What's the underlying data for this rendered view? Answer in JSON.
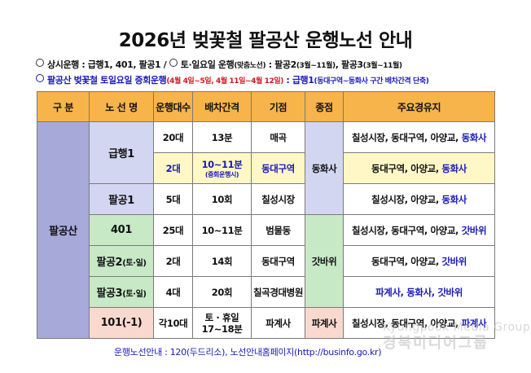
{
  "title": "2026년 벚꽃철 팔공산 운행노선 안내",
  "notes": {
    "line1": {
      "a_label": "상시운행",
      "a_text": " : 급행1, 401, 팔공1  / ",
      "b_label": "토·일요일 운행",
      "b_sub": "(맞춤노선)",
      "b_text": " : 팔공2",
      "b_text_sub1": "(3월~11월)",
      "b_text2": ", 팔공3",
      "b_text_sub2": "(3월~11월)"
    },
    "line2": {
      "label": "팔공산 벚꽃철 토일요일 증회운행",
      "dates": "(4월 4일~5일, 4월 11일~4월 12일)",
      "colon": " : ",
      "route": "급행1",
      "detail": "(동대구역~동화사 구간 배차간격 단축)"
    }
  },
  "table": {
    "headers": [
      "구 분",
      "노 선 명",
      "운행대수",
      "배차간격",
      "기점",
      "종점",
      "주요경유지"
    ],
    "group": "팔공산",
    "rows": {
      "r1": {
        "route": "급행1",
        "count": "20대",
        "interval": "13분",
        "origin": "매곡",
        "terminal": "동화사",
        "stops_black": "칠성시장, 동대구역, 아양교, ",
        "stops_blue": "동화사"
      },
      "r2": {
        "count": "2대",
        "interval": "10~11분",
        "interval_sub": "(증회운행시)",
        "origin": "동대구역",
        "stops_black": "동대구역, 아양교, ",
        "stops_blue": "동화사"
      },
      "r3": {
        "route": "팔공1",
        "count": "5대",
        "interval": "10회",
        "origin": "칠성시장",
        "stops_black": "칠성시장, 아양교, ",
        "stops_blue": "동화사"
      },
      "r4": {
        "route": "401",
        "count": "25대",
        "interval": "10~11분",
        "origin": "범물동",
        "terminal": "갓바위",
        "stops_black": "칠성시장, 동대구역, 아양교, ",
        "stops_blue": "갓바위"
      },
      "r5": {
        "route": "팔공2",
        "route_sub": "(토·일)",
        "count": "2대",
        "interval": "14회",
        "origin": "동대구역",
        "stops_black": "동대구역, 아양교, ",
        "stops_blue": "갓바위"
      },
      "r6": {
        "route": "팔공3",
        "route_sub": "(토·일)",
        "count": "4대",
        "interval": "20회",
        "origin": "칠곡경대병원",
        "stops_blue": "파계사, 동화사, 갓바위"
      },
      "r7": {
        "route": "101(-1)",
        "count": "각10대",
        "interval": "토 · 휴일",
        "interval_line2": "17~18분",
        "origin": "파계사",
        "terminal": "파계사",
        "stops_black": "칠성시장, 동대구역, 아양교, ",
        "stops_blue": "파계사"
      }
    }
  },
  "footer": "운행노선안내 : 120(두드리소),  노선안내홈페이지(http://businfo.go.kr)",
  "watermark": {
    "line1": "Kyungpook Media Group",
    "line2": "경북미디어그룹"
  },
  "colors": {
    "header": "#f6b44a",
    "group": "#a7a9d9",
    "blue_rows": "#d3d6f1",
    "green_rows": "#c7e9c6",
    "pink_rows": "#f9d9cf",
    "accent_blue": "#1a1ab8",
    "accent_red": "#d8141c"
  }
}
